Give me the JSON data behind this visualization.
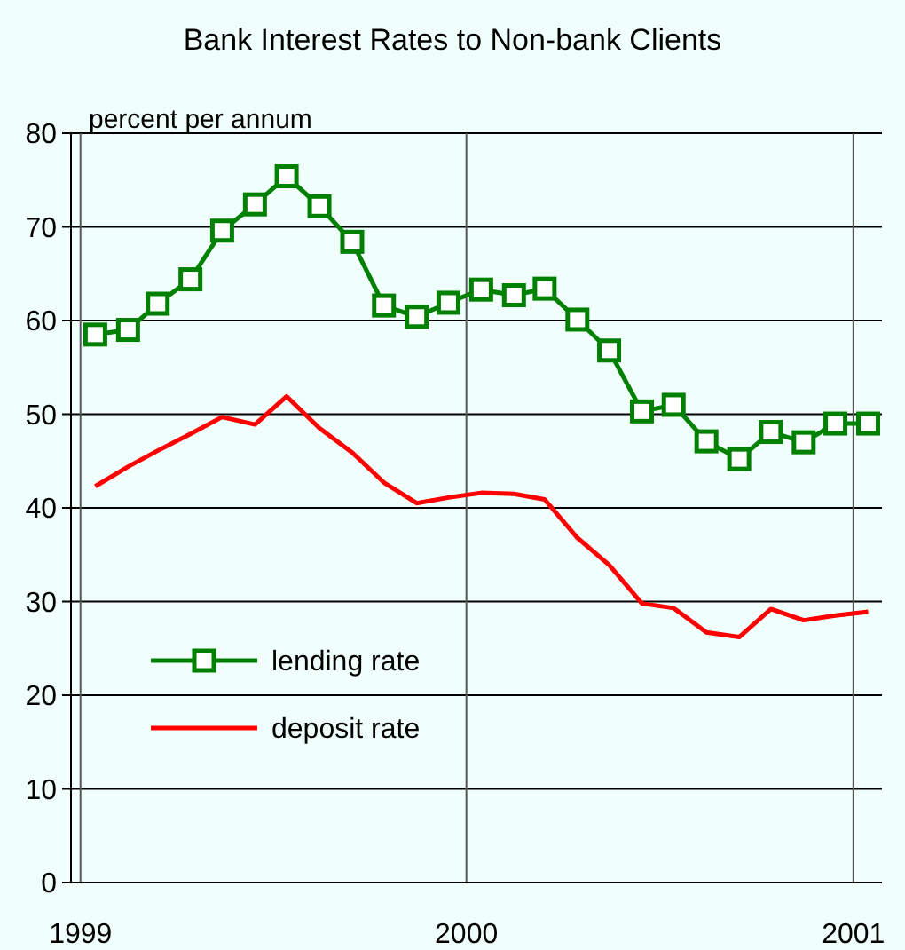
{
  "chart_data": {
    "type": "line",
    "title": "Bank Interest Rates to Non-bank Clients",
    "ylabel": "percent per annum",
    "x": [
      "1999-01-15",
      "1999-02-15",
      "1999-03-15",
      "1999-04-15",
      "1999-05-15",
      "1999-06-15",
      "1999-07-15",
      "1999-08-15",
      "1999-09-15",
      "1999-10-15",
      "1999-11-15",
      "1999-12-15",
      "2000-01-15",
      "2000-02-15",
      "2000-03-15",
      "2000-04-15",
      "2000-05-15",
      "2000-06-15",
      "2000-07-15",
      "2000-08-15",
      "2000-09-15",
      "2000-10-15",
      "2000-11-15",
      "2000-12-15",
      "2001-01-15"
    ],
    "series": [
      {
        "name": "lending rate",
        "color": "#008000",
        "marker": "square",
        "values": [
          58.5,
          59.0,
          61.8,
          64.4,
          69.6,
          72.4,
          75.4,
          72.2,
          68.4,
          61.6,
          60.4,
          61.9,
          63.3,
          62.7,
          63.4,
          60.1,
          56.8,
          50.3,
          51.0,
          47.1,
          45.2,
          48.1,
          47.0,
          49.0,
          49.0
        ]
      },
      {
        "name": "deposit rate",
        "color": "#ff0000",
        "marker": "none",
        "values": [
          42.3,
          44.4,
          46.1,
          47.9,
          49.7,
          48.9,
          51.9,
          48.5,
          45.9,
          42.7,
          40.5,
          41.1,
          41.6,
          41.5,
          40.9,
          36.8,
          33.9,
          29.8,
          29.3,
          26.7,
          26.2,
          29.2,
          28.0,
          28.5,
          28.9
        ]
      }
    ],
    "xlim": [
      "1998-12-23",
      "2001-01-28"
    ],
    "xticks": [
      {
        "value": "1999-01-01",
        "label": "1999"
      },
      {
        "value": "2000-01-01",
        "label": "2000"
      },
      {
        "value": "2001-01-01",
        "label": "2001"
      }
    ],
    "ylim": [
      0,
      80
    ],
    "yticks": [
      0,
      10,
      20,
      30,
      40,
      50,
      60,
      70,
      80
    ],
    "grid": true,
    "legend": "bottom left"
  }
}
